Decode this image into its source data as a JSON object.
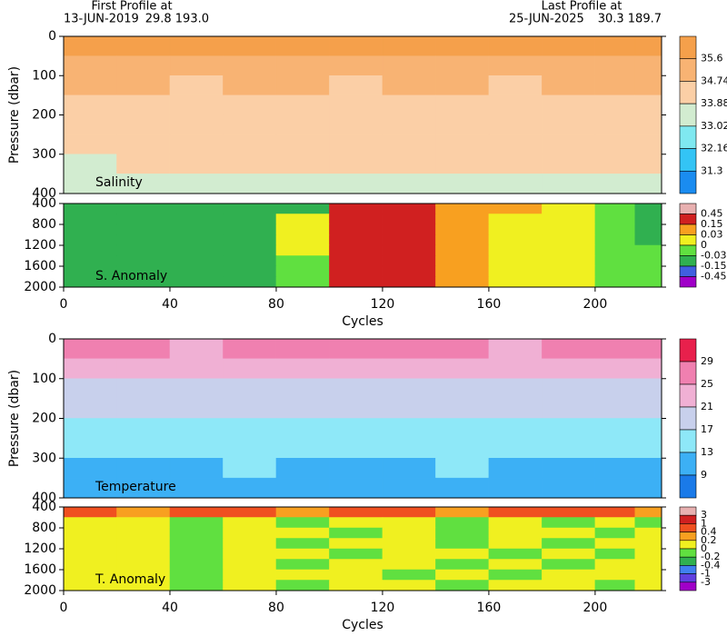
{
  "header": {
    "first_title": "First Profile at",
    "first_date": "13-JUN-2019",
    "first_pos": "29.8  193.0",
    "last_title": "Last Profile at",
    "last_date": "25-JUN-2025",
    "last_pos": "30.3  189.7"
  },
  "chart_data": [
    {
      "type": "heatmap",
      "label": "Salinity",
      "ylabel": "Pressure (dbar)",
      "y_inverted": true,
      "xlim": [
        0,
        225
      ],
      "ylim": [
        0,
        400
      ],
      "yticks": [
        0,
        100,
        200,
        300,
        400
      ],
      "x": [
        10,
        30,
        50,
        70,
        90,
        110,
        130,
        150,
        170,
        190,
        210,
        220
      ],
      "y": [
        25,
        75,
        125,
        175,
        225,
        275,
        325,
        375
      ],
      "values": [
        [
          35.7,
          35.7,
          35.7,
          35.7,
          35.7,
          35.7,
          35.7,
          35.7,
          35.7,
          35.7,
          35.7,
          35.7
        ],
        [
          35.2,
          35.3,
          35.2,
          35.1,
          35.2,
          35.3,
          35.2,
          35.3,
          35.2,
          35.1,
          35.2,
          35.3
        ],
        [
          34.8,
          34.9,
          34.7,
          34.8,
          34.9,
          34.7,
          34.8,
          34.9,
          34.7,
          34.8,
          34.9,
          34.8
        ],
        [
          34.6,
          34.6,
          34.5,
          34.6,
          34.6,
          34.5,
          34.6,
          34.6,
          34.5,
          34.6,
          34.6,
          34.5
        ],
        [
          34.5,
          34.5,
          34.4,
          34.5,
          34.5,
          34.4,
          34.5,
          34.5,
          34.4,
          34.5,
          34.5,
          34.4
        ],
        [
          34.1,
          34.3,
          34.5,
          34.4,
          34.3,
          34.5,
          34.4,
          34.5,
          34.4,
          34.3,
          34.4,
          34.3
        ],
        [
          33.7,
          33.9,
          34.1,
          34.0,
          33.9,
          34.0,
          34.0,
          34.1,
          34.0,
          33.9,
          34.1,
          33.9
        ],
        [
          33.6,
          33.6,
          33.7,
          33.6,
          33.6,
          33.7,
          33.6,
          33.7,
          33.6,
          33.6,
          33.7,
          33.6
        ]
      ],
      "levels": [
        31.3,
        32.16,
        33.02,
        33.88,
        34.74,
        35.6
      ],
      "colors": [
        "#1a8cf0",
        "#33c4f5",
        "#7fe8f0",
        "#d2ecd0",
        "#fbcfa6",
        "#f8b373",
        "#f5a04b"
      ]
    },
    {
      "type": "heatmap",
      "label": "S. Anomaly",
      "xlabel": "Cycles",
      "y_inverted": true,
      "xlim": [
        0,
        225
      ],
      "xticks": [
        0,
        40,
        80,
        120,
        160,
        200
      ],
      "ylim": [
        400,
        2000
      ],
      "yticks": [
        400,
        800,
        1200,
        1600,
        2000
      ],
      "x": [
        10,
        30,
        50,
        70,
        90,
        110,
        130,
        150,
        170,
        190,
        210,
        220
      ],
      "y": [
        500,
        700,
        900,
        1100,
        1300,
        1500,
        1700,
        1900
      ],
      "values": [
        [
          -0.08,
          -0.08,
          -0.1,
          -0.08,
          -0.05,
          0.2,
          0.2,
          0.1,
          0.05,
          0.02,
          -0.01,
          -0.05
        ],
        [
          -0.08,
          -0.06,
          -0.08,
          -0.07,
          0.01,
          0.2,
          0.2,
          0.08,
          0.02,
          0.01,
          -0.02,
          -0.04
        ],
        [
          -0.07,
          -0.06,
          -0.08,
          -0.07,
          0.01,
          0.2,
          0.2,
          0.08,
          0.02,
          0.01,
          -0.02,
          -0.04
        ],
        [
          -0.07,
          -0.06,
          -0.07,
          -0.06,
          0.02,
          0.2,
          0.2,
          0.07,
          0.02,
          0.01,
          -0.01,
          -0.04
        ],
        [
          -0.06,
          -0.05,
          -0.07,
          -0.06,
          0.02,
          0.2,
          0.2,
          0.06,
          0.02,
          0.01,
          -0.01,
          -0.03
        ],
        [
          -0.06,
          -0.05,
          -0.06,
          -0.05,
          -0.02,
          0.2,
          0.2,
          0.05,
          0.02,
          0.01,
          -0.01,
          -0.03
        ],
        [
          -0.05,
          -0.05,
          -0.06,
          -0.05,
          -0.02,
          0.2,
          0.2,
          0.05,
          0.02,
          0.01,
          -0.01,
          -0.03
        ],
        [
          -0.05,
          -0.04,
          -0.05,
          -0.04,
          -0.02,
          0.2,
          0.2,
          0.04,
          0.02,
          0.01,
          -0.01,
          -0.02
        ]
      ],
      "levels": [
        -0.45,
        -0.15,
        -0.03,
        0,
        0.03,
        0.15,
        0.45
      ],
      "colors": [
        "#a000c8",
        "#4060e0",
        "#30b050",
        "#60e040",
        "#f0f020",
        "#f8a020",
        "#d02020",
        "#e8b0b0"
      ]
    },
    {
      "type": "heatmap",
      "label": "Temperature",
      "ylabel": "Pressure (dbar)",
      "y_inverted": true,
      "xlim": [
        0,
        225
      ],
      "ylim": [
        0,
        400
      ],
      "yticks": [
        0,
        100,
        200,
        300,
        400
      ],
      "x": [
        10,
        30,
        50,
        70,
        90,
        110,
        130,
        150,
        170,
        190,
        210,
        220
      ],
      "y": [
        25,
        75,
        125,
        175,
        225,
        275,
        325,
        375
      ],
      "values": [
        [
          26,
          25.5,
          24,
          25,
          25.5,
          26,
          25,
          25.5,
          24.5,
          26,
          25.5,
          26
        ],
        [
          23,
          22.5,
          22,
          23,
          22,
          23,
          22.5,
          23,
          22,
          23,
          22.5,
          23
        ],
        [
          20,
          19.5,
          19,
          20,
          19.5,
          20,
          19.5,
          20,
          19,
          20,
          19.5,
          20
        ],
        [
          17.5,
          17,
          18,
          17.5,
          17,
          17.5,
          18,
          17.5,
          17,
          17.5,
          18,
          17.5
        ],
        [
          15,
          15.5,
          16,
          15,
          15.5,
          15,
          16,
          15.5,
          15,
          15.5,
          16,
          15
        ],
        [
          14,
          14.5,
          13.5,
          14,
          14.5,
          14,
          13.5,
          14,
          14.5,
          14,
          13.5,
          14
        ],
        [
          12.5,
          12,
          12.5,
          13,
          12.5,
          12,
          12.5,
          13,
          12.5,
          12,
          12.5,
          12
        ],
        [
          10,
          9.5,
          10.5,
          10,
          10.5,
          10,
          9.5,
          10.5,
          10,
          10,
          9.5,
          10
        ]
      ],
      "levels": [
        9,
        13,
        17,
        21,
        25,
        29
      ],
      "colors": [
        "#1a7ae8",
        "#3cb0f5",
        "#8ee8f8",
        "#c8d0ec",
        "#f0b0d4",
        "#f080b0",
        "#e8204c"
      ]
    },
    {
      "type": "heatmap",
      "label": "T. Anomaly",
      "xlabel": "Cycles",
      "y_inverted": true,
      "xlim": [
        0,
        225
      ],
      "xticks": [
        0,
        40,
        80,
        120,
        160,
        200
      ],
      "ylim": [
        400,
        2000
      ],
      "yticks": [
        400,
        800,
        1200,
        1600,
        2000
      ],
      "x": [
        10,
        30,
        50,
        70,
        90,
        110,
        130,
        150,
        170,
        190,
        210,
        220
      ],
      "y": [
        500,
        700,
        900,
        1100,
        1300,
        1500,
        1700,
        1900
      ],
      "values": [
        [
          0.5,
          0.3,
          0.6,
          0.5,
          0.3,
          0.5,
          0.6,
          0.3,
          0.5,
          0.6,
          0.5,
          0.3
        ],
        [
          0.1,
          0.1,
          -0.1,
          0.1,
          -0.1,
          0.1,
          0.1,
          -0.1,
          0.1,
          -0.1,
          0.1,
          -0.1
        ],
        [
          0.1,
          0.1,
          -0.1,
          0.1,
          0.1,
          -0.1,
          0.1,
          -0.1,
          0.1,
          0.1,
          -0.1,
          0.1
        ],
        [
          0.1,
          0.1,
          -0.1,
          0.1,
          -0.1,
          0.1,
          0.1,
          -0.1,
          0.1,
          -0.1,
          0.1,
          0.1
        ],
        [
          0.1,
          0.1,
          -0.1,
          0.1,
          0.1,
          -0.1,
          0.1,
          0.1,
          -0.1,
          0.1,
          -0.1,
          0.1
        ],
        [
          0.1,
          0.1,
          -0.1,
          0.1,
          -0.1,
          0.1,
          0.1,
          -0.1,
          0.1,
          -0.1,
          0.1,
          0.1
        ],
        [
          0.1,
          0.1,
          -0.1,
          0.1,
          0.1,
          0.1,
          -0.1,
          0.1,
          -0.1,
          0.1,
          0.1,
          0.1
        ],
        [
          0.1,
          0.1,
          -0.1,
          0.1,
          -0.1,
          0.1,
          0.1,
          -0.1,
          0.1,
          0.1,
          -0.1,
          0.1
        ]
      ],
      "levels": [
        -3,
        -1,
        -0.4,
        -0.2,
        0,
        0.2,
        0.4,
        1,
        3
      ],
      "colors": [
        "#a000c8",
        "#6040e0",
        "#4080f0",
        "#30b050",
        "#60e040",
        "#f0f020",
        "#f8a020",
        "#f05020",
        "#d02020",
        "#e8b0b0"
      ]
    }
  ]
}
